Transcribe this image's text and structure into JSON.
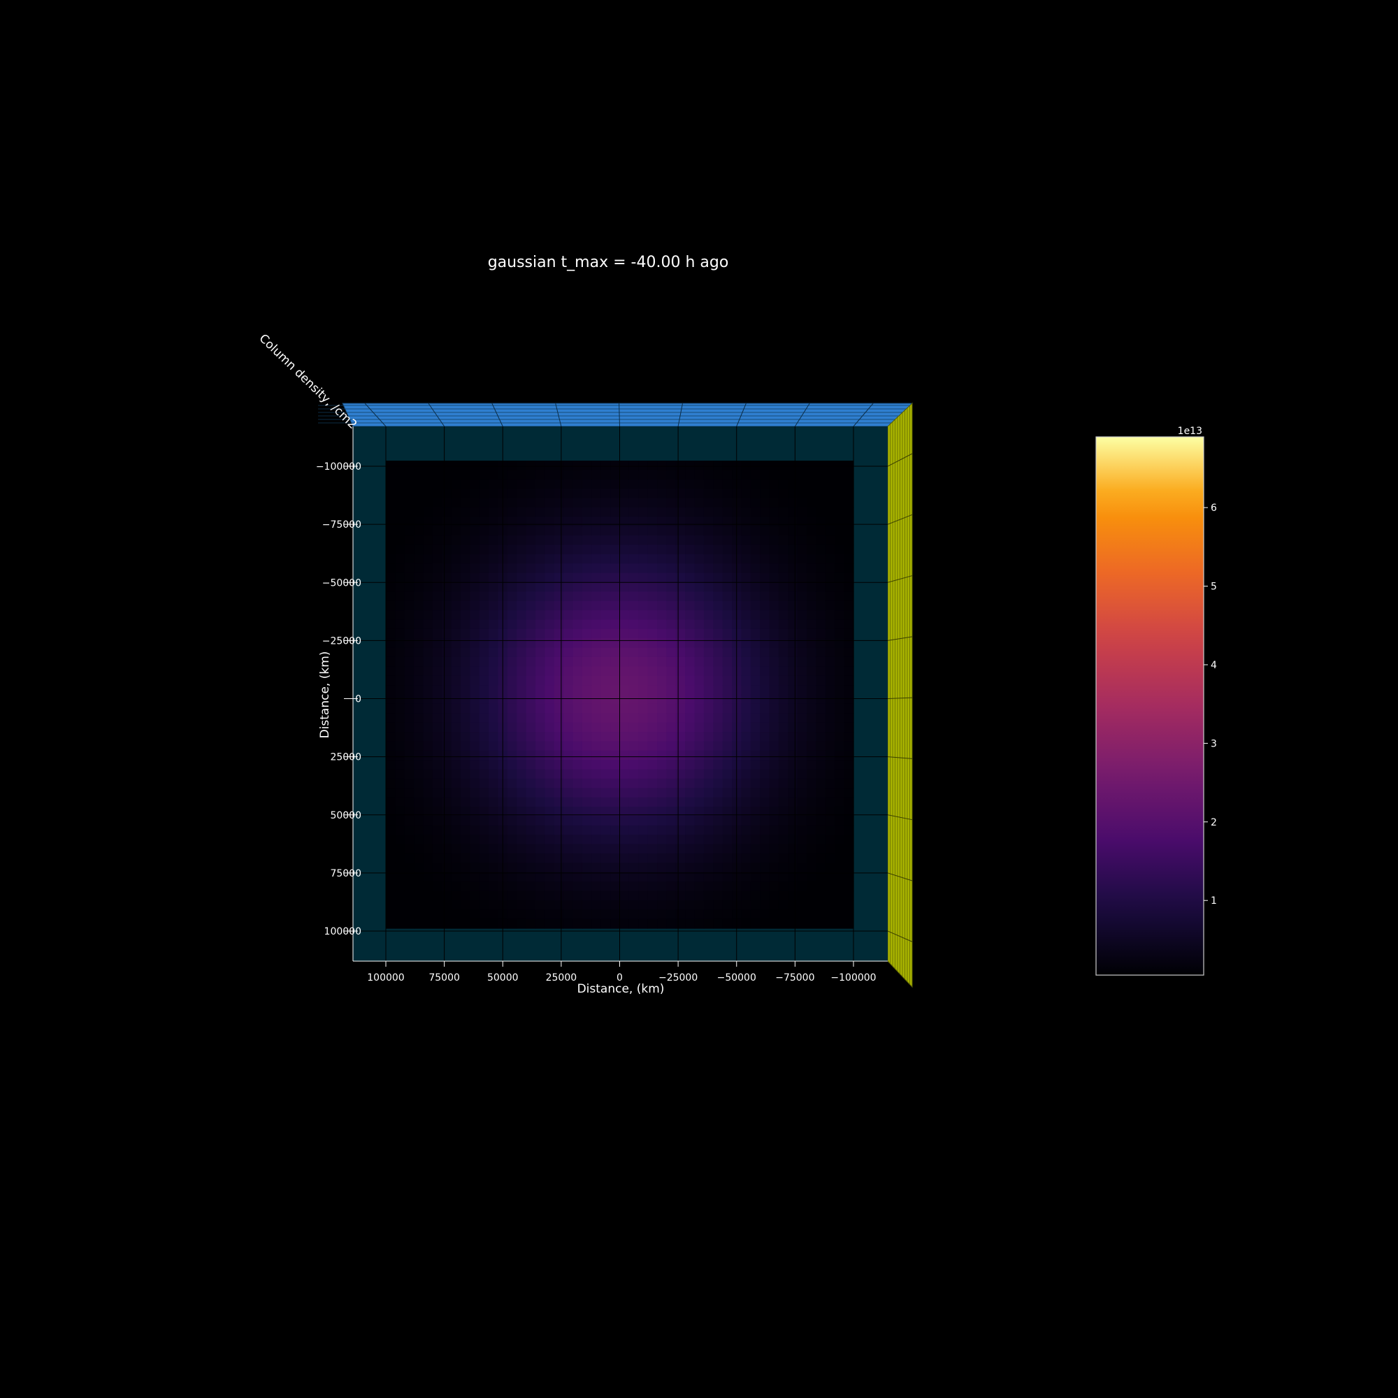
{
  "chart_data": {
    "type": "heatmap",
    "title": "gaussian t_max = -40.00 h ago",
    "xlabel": "Distance, (km)",
    "ylabel": "Distance, (km)",
    "zlabel": "Column density, /cm2",
    "x_ticks": [
      "100000",
      "75000",
      "50000",
      "25000",
      "0",
      "−25000",
      "−50000",
      "−75000",
      "−100000"
    ],
    "y_ticks": [
      "−100000",
      "−75000",
      "−50000",
      "−25000",
      "0",
      "25000",
      "50000",
      "75000",
      "100000"
    ],
    "xlim": [
      100000,
      -100000
    ],
    "ylim": [
      -100000,
      100000
    ],
    "grid": true,
    "colormap": "inferno",
    "colorbar": {
      "offset_label": "1e13",
      "ticks": [
        "1",
        "2",
        "3",
        "4",
        "5",
        "6"
      ],
      "tick_values": [
        1,
        2,
        3,
        4,
        5,
        6
      ],
      "range": [
        0.05,
        6.9
      ]
    },
    "field": {
      "shape": "gaussian",
      "peak_value_1e13": 2.3,
      "center_km": [
        0,
        0
      ],
      "sigma_km": 42000,
      "grid_cells_per_side": 50
    },
    "pane_colors": {
      "floor": "#002a36",
      "back_wall": "#2f7fd0",
      "side_wall": "#a8b300"
    }
  }
}
